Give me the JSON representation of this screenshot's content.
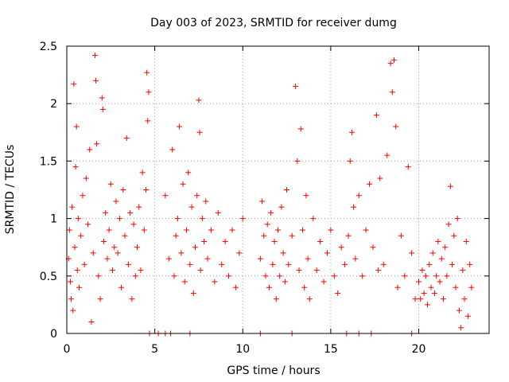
{
  "chart_data": {
    "type": "scatter",
    "title": "Day 003 of 2023, SRMTID for receiver dumg",
    "xlabel": "GPS time / hours",
    "ylabel": "SRMTID / TECUs",
    "xlim": [
      0,
      24
    ],
    "ylim": [
      0,
      2.5
    ],
    "xticks": [
      0,
      5,
      10,
      15,
      20
    ],
    "xtick_labels": [
      "0",
      "5",
      "10",
      "15",
      "20"
    ],
    "yticks": [
      0,
      0.5,
      1,
      1.5,
      2,
      2.5
    ],
    "ytick_labels": [
      "0",
      "0.5",
      "1",
      "1.5",
      "2",
      "2.5"
    ],
    "grid": true,
    "marker": "+",
    "color": "#ff0000",
    "series": [
      {
        "name": "SRMTID",
        "points": [
          [
            0.1,
            0.65
          ],
          [
            0.15,
            0.9
          ],
          [
            0.2,
            0.45
          ],
          [
            0.25,
            0.3
          ],
          [
            0.3,
            1.1
          ],
          [
            0.35,
            0.2
          ],
          [
            0.4,
            2.17
          ],
          [
            0.45,
            0.75
          ],
          [
            0.5,
            1.45
          ],
          [
            0.55,
            1.8
          ],
          [
            0.6,
            0.55
          ],
          [
            0.65,
            1.0
          ],
          [
            0.7,
            0.4
          ],
          [
            0.8,
            0.85
          ],
          [
            0.9,
            1.2
          ],
          [
            1.0,
            0.6
          ],
          [
            1.1,
            1.35
          ],
          [
            1.2,
            0.95
          ],
          [
            1.3,
            1.6
          ],
          [
            1.4,
            0.1
          ],
          [
            1.5,
            0.7
          ],
          [
            1.6,
            2.42
          ],
          [
            1.65,
            2.2
          ],
          [
            1.7,
            1.65
          ],
          [
            1.8,
            0.5
          ],
          [
            1.9,
            0.3
          ],
          [
            2.0,
            2.05
          ],
          [
            2.05,
            1.95
          ],
          [
            2.1,
            0.8
          ],
          [
            2.2,
            1.05
          ],
          [
            2.3,
            0.65
          ],
          [
            2.4,
            0.9
          ],
          [
            2.5,
            1.3
          ],
          [
            2.6,
            0.55
          ],
          [
            2.7,
            0.75
          ],
          [
            2.8,
            1.15
          ],
          [
            2.9,
            0.7
          ],
          [
            3.0,
            1.0
          ],
          [
            3.1,
            0.4
          ],
          [
            3.2,
            1.25
          ],
          [
            3.3,
            0.85
          ],
          [
            3.4,
            1.7
          ],
          [
            3.5,
            0.6
          ],
          [
            3.6,
            1.05
          ],
          [
            3.7,
            0.3
          ],
          [
            3.8,
            0.95
          ],
          [
            3.9,
            0.5
          ],
          [
            4.0,
            0.75
          ],
          [
            4.1,
            1.1
          ],
          [
            4.2,
            0.55
          ],
          [
            4.3,
            1.4
          ],
          [
            4.4,
            0.9
          ],
          [
            4.5,
            1.25
          ],
          [
            4.55,
            2.27
          ],
          [
            4.6,
            1.85
          ],
          [
            4.65,
            2.1
          ],
          [
            4.7,
            0.0
          ],
          [
            5.6,
            1.2
          ],
          [
            5.8,
            0.65
          ],
          [
            6.0,
            1.6
          ],
          [
            6.1,
            0.5
          ],
          [
            6.2,
            0.85
          ],
          [
            6.3,
            1.0
          ],
          [
            6.4,
            1.8
          ],
          [
            6.5,
            0.7
          ],
          [
            6.6,
            1.3
          ],
          [
            6.7,
            0.45
          ],
          [
            6.8,
            0.9
          ],
          [
            6.9,
            1.4
          ],
          [
            7.0,
            0.6
          ],
          [
            7.1,
            1.1
          ],
          [
            7.2,
            0.35
          ],
          [
            7.3,
            0.75
          ],
          [
            7.4,
            1.2
          ],
          [
            7.5,
            2.03
          ],
          [
            7.55,
            1.75
          ],
          [
            7.6,
            0.55
          ],
          [
            7.7,
            1.0
          ],
          [
            7.8,
            0.8
          ],
          [
            7.9,
            1.15
          ],
          [
            8.0,
            0.65
          ],
          [
            8.2,
            0.9
          ],
          [
            8.4,
            0.45
          ],
          [
            8.6,
            1.05
          ],
          [
            8.8,
            0.6
          ],
          [
            9.0,
            0.8
          ],
          [
            9.2,
            0.5
          ],
          [
            9.4,
            0.9
          ],
          [
            9.6,
            0.4
          ],
          [
            9.8,
            0.7
          ],
          [
            10.0,
            1.0
          ],
          [
            11.0,
            0.65
          ],
          [
            11.1,
            1.15
          ],
          [
            11.2,
            0.85
          ],
          [
            11.3,
            0.5
          ],
          [
            11.4,
            0.95
          ],
          [
            11.5,
            0.4
          ],
          [
            11.6,
            1.05
          ],
          [
            11.7,
            0.6
          ],
          [
            11.8,
            0.8
          ],
          [
            11.9,
            0.3
          ],
          [
            12.0,
            0.9
          ],
          [
            12.1,
            0.5
          ],
          [
            12.2,
            1.1
          ],
          [
            12.3,
            0.7
          ],
          [
            12.4,
            0.45
          ],
          [
            12.5,
            1.25
          ],
          [
            12.6,
            0.6
          ],
          [
            12.8,
            0.85
          ],
          [
            13.0,
            2.15
          ],
          [
            13.1,
            1.5
          ],
          [
            13.2,
            0.55
          ],
          [
            13.3,
            1.78
          ],
          [
            13.4,
            0.9
          ],
          [
            13.5,
            0.4
          ],
          [
            13.6,
            1.2
          ],
          [
            13.7,
            0.65
          ],
          [
            13.8,
            0.3
          ],
          [
            14.0,
            1.0
          ],
          [
            14.2,
            0.55
          ],
          [
            14.4,
            0.8
          ],
          [
            14.6,
            0.45
          ],
          [
            14.8,
            0.7
          ],
          [
            15.0,
            0.9
          ],
          [
            15.2,
            0.5
          ],
          [
            15.4,
            0.35
          ],
          [
            15.6,
            0.75
          ],
          [
            15.8,
            0.6
          ],
          [
            16.0,
            0.85
          ],
          [
            16.1,
            1.5
          ],
          [
            16.2,
            1.75
          ],
          [
            16.3,
            1.1
          ],
          [
            16.4,
            0.65
          ],
          [
            16.6,
            1.2
          ],
          [
            16.8,
            0.5
          ],
          [
            17.0,
            0.9
          ],
          [
            17.2,
            1.3
          ],
          [
            17.4,
            0.75
          ],
          [
            17.6,
            1.9
          ],
          [
            17.7,
            0.55
          ],
          [
            17.8,
            1.35
          ],
          [
            18.0,
            0.6
          ],
          [
            18.2,
            1.55
          ],
          [
            18.4,
            2.35
          ],
          [
            18.5,
            2.1
          ],
          [
            18.6,
            2.38
          ],
          [
            18.7,
            1.8
          ],
          [
            18.8,
            0.4
          ],
          [
            19.0,
            0.85
          ],
          [
            19.2,
            0.5
          ],
          [
            19.4,
            1.45
          ],
          [
            19.6,
            0.7
          ],
          [
            19.8,
            0.3
          ],
          [
            20.0,
            0.45
          ],
          [
            20.1,
            0.3
          ],
          [
            20.2,
            0.55
          ],
          [
            20.3,
            0.35
          ],
          [
            20.4,
            0.5
          ],
          [
            20.5,
            0.25
          ],
          [
            20.6,
            0.6
          ],
          [
            20.7,
            0.4
          ],
          [
            20.8,
            0.7
          ],
          [
            20.9,
            0.35
          ],
          [
            21.0,
            0.5
          ],
          [
            21.1,
            0.8
          ],
          [
            21.2,
            0.45
          ],
          [
            21.3,
            0.65
          ],
          [
            21.4,
            0.3
          ],
          [
            21.5,
            0.75
          ],
          [
            21.6,
            0.5
          ],
          [
            21.7,
            0.95
          ],
          [
            21.8,
            1.28
          ],
          [
            21.9,
            0.6
          ],
          [
            22.0,
            0.85
          ],
          [
            22.1,
            0.4
          ],
          [
            22.2,
            1.0
          ],
          [
            22.3,
            0.2
          ],
          [
            22.4,
            0.05
          ],
          [
            22.5,
            0.55
          ],
          [
            22.6,
            0.3
          ],
          [
            22.7,
            0.8
          ],
          [
            22.8,
            0.15
          ],
          [
            22.9,
            0.6
          ],
          [
            23.0,
            0.4
          ]
        ]
      }
    ],
    "zero_points_x": [
      5.2,
      5.6,
      5.9,
      7.0,
      11.0,
      12.8,
      15.9,
      16.6,
      17.3,
      19.6
    ]
  }
}
